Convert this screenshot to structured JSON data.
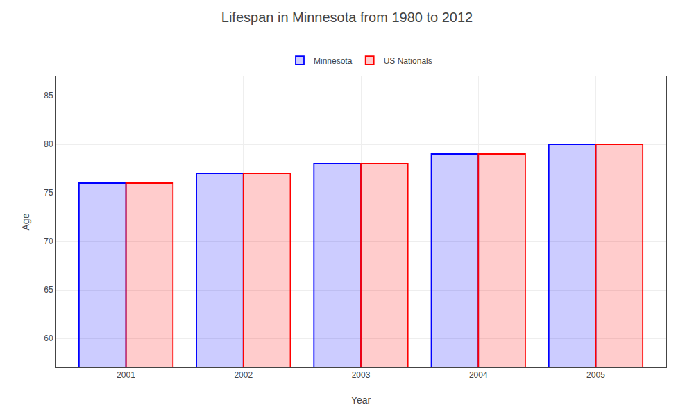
{
  "chart_data": {
    "type": "bar",
    "title": "Lifespan in Minnesota from 1980 to 2012",
    "xlabel": "Year",
    "ylabel": "Age",
    "categories": [
      "2001",
      "2002",
      "2003",
      "2004",
      "2005"
    ],
    "series": [
      {
        "name": "Minnesota",
        "color": "#0000ff",
        "values": [
          76,
          77,
          78,
          79,
          80
        ]
      },
      {
        "name": "US Nationals",
        "color": "#ff0000",
        "values": [
          76,
          77,
          78,
          79,
          80
        ]
      }
    ],
    "ylim": [
      57,
      87
    ],
    "yticks": [
      60,
      65,
      70,
      75,
      80,
      85
    ],
    "grid": true,
    "legend": "top"
  }
}
